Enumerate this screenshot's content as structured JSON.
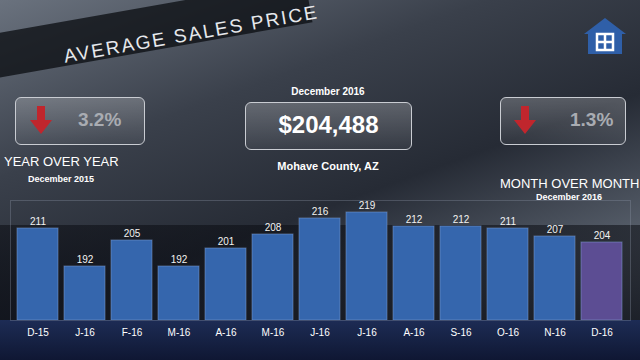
{
  "chart_data": {
    "type": "bar",
    "title": "AVERAGE SALES PRICE",
    "categories": [
      "D-15",
      "J-16",
      "F-16",
      "M-16",
      "A-16",
      "M-16",
      "J-16",
      "J-16",
      "A-16",
      "S-16",
      "O-16",
      "N-16",
      "D-16"
    ],
    "values": [
      211,
      192,
      205,
      192,
      201,
      208,
      216,
      219,
      212,
      212,
      211,
      207,
      204
    ],
    "colors": [
      "#3566ad",
      "#3566ad",
      "#3566ad",
      "#3566ad",
      "#3566ad",
      "#3566ad",
      "#3566ad",
      "#3566ad",
      "#3566ad",
      "#3566ad",
      "#3566ad",
      "#3566ad",
      "#5c4d93"
    ],
    "ylim": [
      165,
      225
    ],
    "yticks": [],
    "grid": false,
    "data_labels": true,
    "tick_labels": "x"
  },
  "headline": {
    "period": "December 2016",
    "value": "$204,488",
    "place": "Mohave County, AZ"
  },
  "year_over_year": {
    "change": "3.2%",
    "direction": "down",
    "label": "YEAR OVER YEAR",
    "period": "December 2015"
  },
  "month_over_month": {
    "change": "1.3%",
    "direction": "down",
    "label": "MONTH OVER MONTH",
    "period": "December 2016"
  }
}
